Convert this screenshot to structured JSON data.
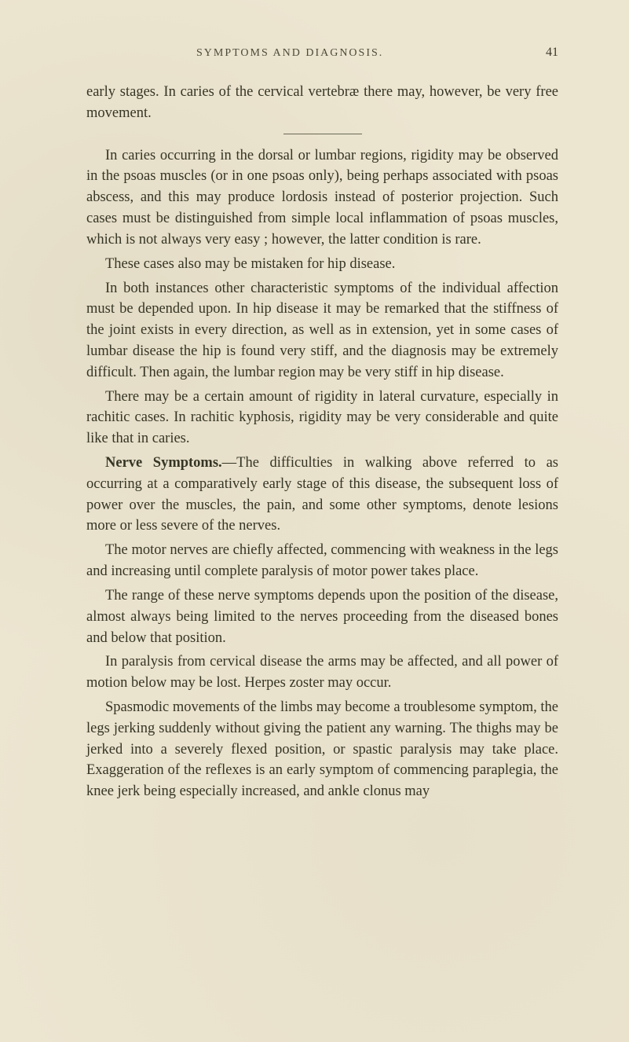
{
  "page": {
    "running_head": "SYMPTOMS AND DIAGNOSIS.",
    "page_number": "41",
    "background_color": "#ece5d0",
    "text_color": "#353525",
    "font_family": "Georgia, 'Times New Roman', serif",
    "body_fontsize": 18.5,
    "line_height": 1.45,
    "header_fontsize": 14,
    "pagenum_fontsize": 16,
    "divider_width": 100,
    "divider_color": "#6a6a55"
  },
  "paragraphs": {
    "p1": "early stages. In caries of the cervical vertebræ there may, however, be very free movement.",
    "p2": "In caries occurring in the dorsal or lumbar regions, rigidity may be observed in the psoas muscles (or in one psoas only), being perhaps associated with psoas abscess, and this may produce lordosis instead of posterior projection. Such cases must be distinguished from simple local inflammation of psoas muscles, which is not always very easy ; however, the latter condition is rare.",
    "p3": "These cases also may be mistaken for hip disease.",
    "p4": "In both instances other characteristic symptoms of the individual affection must be depended upon. In hip disease it may be remarked that the stiffness of the joint exists in every direction, as well as in extension, yet in some cases of lumbar disease the hip is found very stiff, and the diagnosis may be extremely difficult. Then again, the lumbar region may be very stiff in hip disease.",
    "p5": "There may be a certain amount of rigidity in lateral curvature, especially in rachitic cases. In rachitic kyphosis, rigidity may be very considerable and quite like that in caries.",
    "p6_lead": "Nerve Symptoms.",
    "p6_rest": "—The difficulties in walking above referred to as occurring at a comparatively early stage of this disease, the subsequent loss of power over the muscles, the pain, and some other symptoms, denote lesions more or less severe of the nerves.",
    "p7": "The motor nerves are chiefly affected, commencing with weakness in the legs and increasing until complete paralysis of motor power takes place.",
    "p8": "The range of these nerve symptoms depends upon the position of the disease, almost always being limited to the nerves proceeding from the diseased bones and below that position.",
    "p9": "In paralysis from cervical disease the arms may be affected, and all power of motion below may be lost. Herpes zoster may occur.",
    "p10": "Spasmodic movements of the limbs may become a troublesome symptom, the legs jerking suddenly without giving the patient any warning. The thighs may be jerked into a severely flexed position, or spastic paralysis may take place. Exaggeration of the reflexes is an early symptom of commencing paraplegia, the knee jerk being especially increased, and ankle clonus may"
  }
}
